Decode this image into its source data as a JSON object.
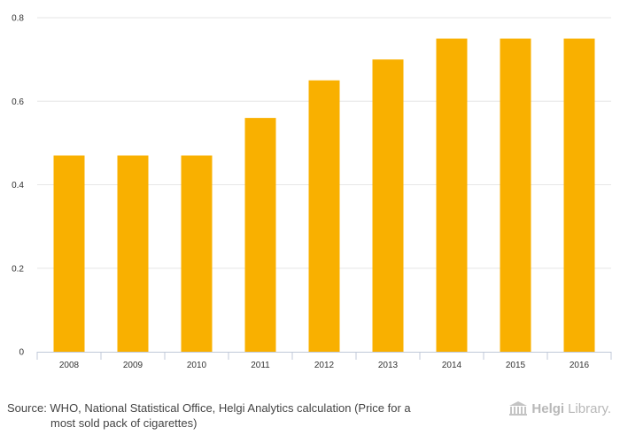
{
  "chart_data": {
    "type": "bar",
    "categories": [
      "2008",
      "2009",
      "2010",
      "2011",
      "2012",
      "2013",
      "2014",
      "2015",
      "2016"
    ],
    "values": [
      0.47,
      0.47,
      0.47,
      0.56,
      0.65,
      0.7,
      0.75,
      0.75,
      0.75
    ],
    "ylim": [
      0,
      0.8
    ],
    "yticks": [
      0,
      0.2,
      0.4,
      0.6,
      0.8
    ],
    "ytick_labels": [
      "0",
      "0.2",
      "0.4",
      "0.6",
      "0.8"
    ],
    "bar_color": "#f9b000",
    "grid": true,
    "title": "",
    "xlabel": "",
    "ylabel": ""
  },
  "footer": {
    "source_line1": "Source: WHO, National Statistical Office, Helgi Analytics calculation (Price for a",
    "source_line2": "most sold pack of cigarettes)",
    "brand_bold": "Helgi",
    "brand_rest": "Library."
  }
}
